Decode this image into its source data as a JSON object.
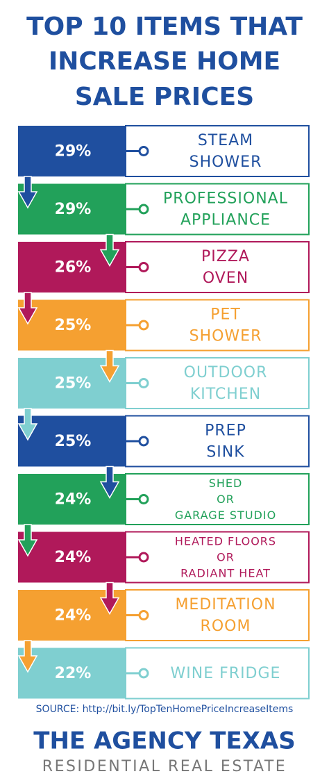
{
  "header": {
    "title_lines": [
      "TOP 10 ITEMS THAT",
      "INCREASE HOME",
      "SALE PRICES"
    ]
  },
  "items": [
    {
      "percent": "29%",
      "lines": [
        "STEAM",
        "SHOWER"
      ],
      "color": "#1f4f9f"
    },
    {
      "percent": "29%",
      "lines": [
        "PROFESSIONAL",
        "APPLIANCE"
      ],
      "color": "#22a15a"
    },
    {
      "percent": "26%",
      "lines": [
        "PIZZA",
        "OVEN"
      ],
      "color": "#b0195a"
    },
    {
      "percent": "25%",
      "lines": [
        "PET",
        "SHOWER"
      ],
      "color": "#f5a031"
    },
    {
      "percent": "25%",
      "lines": [
        "OUTDOOR",
        "KITCHEN"
      ],
      "color": "#7fcfd0"
    },
    {
      "percent": "25%",
      "lines": [
        "PREP",
        "SINK"
      ],
      "color": "#1f4f9f"
    },
    {
      "percent": "24%",
      "lines": [
        "SHED",
        "OR",
        "GARAGE STUDIO"
      ],
      "color": "#22a15a"
    },
    {
      "percent": "24%",
      "lines": [
        "HEATED FLOORS",
        "OR",
        "RADIANT HEAT"
      ],
      "color": "#b0195a"
    },
    {
      "percent": "24%",
      "lines": [
        "MEDITATION",
        "ROOM"
      ],
      "color": "#f5a031"
    },
    {
      "percent": "22%",
      "lines": [
        "WINE FRIDGE"
      ],
      "color": "#7fcfd0"
    }
  ],
  "footer": {
    "source": "SOURCE: http://bit.ly/TopTenHomePriceIncreaseItems",
    "brand": "THE AGENCY TEXAS",
    "tagline": "RESIDENTIAL REAL ESTATE"
  }
}
